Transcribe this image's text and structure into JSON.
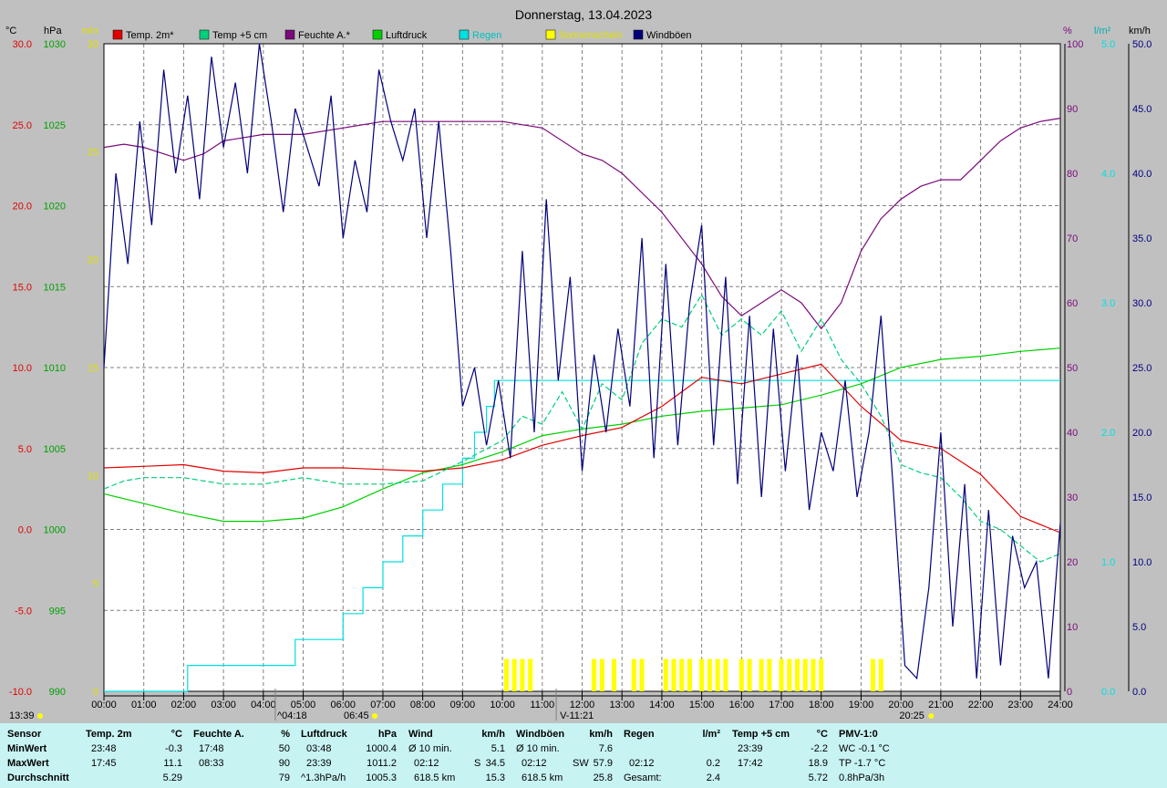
{
  "page": {
    "title": "Donnerstag, 13.04.2023"
  },
  "colors": {
    "temp2m": "#e00000",
    "temp5cm": "#00d07a",
    "humidity": "#7a0a7a",
    "pressure": "#00d000",
    "rain": "#00e0e0",
    "sun": "#ffff00",
    "gust": "#00007a"
  },
  "chart_data": {
    "type": "line",
    "title": "Donnerstag, 13.04.2023",
    "x_ticks": [
      "00:00",
      "01:00",
      "02:00",
      "03:00",
      "04:00",
      "05:00",
      "06:00",
      "07:00",
      "08:00",
      "09:00",
      "10:00",
      "11:00",
      "12:00",
      "13:00",
      "14:00",
      "15:00",
      "16:00",
      "17:00",
      "18:00",
      "19:00",
      "20:00",
      "21:00",
      "22:00",
      "23:00",
      "24:00"
    ],
    "xlim": [
      0,
      24
    ],
    "grid": true,
    "legend": [
      {
        "label": "Temp. 2m*",
        "color": "#e00000"
      },
      {
        "label": "Temp +5 cm",
        "color": "#00d07a"
      },
      {
        "label": "Feuchte A.*",
        "color": "#7a0a7a"
      },
      {
        "label": "Luftdruck",
        "color": "#00d000"
      },
      {
        "label": "Regen",
        "color": "#00e0e0"
      },
      {
        "label": "Sonnenschein",
        "color": "#ffff00"
      },
      {
        "label": "Windböen",
        "color": "#00007a"
      }
    ],
    "axes": {
      "temp": {
        "unit": "°C",
        "min": -10,
        "max": 30,
        "ticks": [
          "30.0",
          "25.0",
          "20.0",
          "15.0",
          "10.0",
          "5.0",
          "0.0",
          "-5.0",
          "-10.0"
        ],
        "color": "#e00000"
      },
      "pressure": {
        "unit": "hPa",
        "min": 990,
        "max": 1030,
        "ticks": [
          "1030",
          "1025",
          "1020",
          "1015",
          "1010",
          "1005",
          "1000",
          "995",
          "990"
        ],
        "color": "#00a000"
      },
      "sun": {
        "unit": "min",
        "min": 0,
        "max": 30,
        "ticks": [
          "30",
          "25",
          "20",
          "15",
          "10",
          "5",
          "0"
        ],
        "color": "#e0e000"
      },
      "humidity": {
        "unit": "%",
        "min": 0,
        "max": 100,
        "ticks": [
          "100",
          "90",
          "80",
          "70",
          "60",
          "50",
          "40",
          "30",
          "20",
          "10",
          "0"
        ],
        "color": "#7a0a7a"
      },
      "rain": {
        "unit": "l/m²",
        "min": 0,
        "max": 5,
        "ticks": [
          "5.0",
          "4.0",
          "3.0",
          "2.0",
          "1.0",
          "0.0"
        ],
        "color": "#00e0e0"
      },
      "wind": {
        "unit": "km/h",
        "min": 0,
        "max": 50,
        "ticks": [
          "50.0",
          "45.0",
          "40.0",
          "35.0",
          "30.0",
          "25.0",
          "20.0",
          "15.0",
          "10.0",
          "5.0",
          "0.0"
        ],
        "color": "#000080"
      }
    },
    "series": [
      {
        "name": "Temp. 2m*",
        "axis": "temp",
        "x": [
          0,
          1,
          2,
          3,
          4,
          5,
          6,
          7,
          8,
          9,
          10,
          11,
          12,
          13,
          14,
          15,
          16,
          17,
          18,
          19,
          20,
          21,
          22,
          23,
          24
        ],
        "y": [
          3.8,
          3.9,
          4.0,
          3.6,
          3.5,
          3.8,
          3.8,
          3.7,
          3.6,
          3.8,
          4.3,
          5.2,
          5.8,
          6.3,
          7.6,
          9.4,
          9.0,
          9.6,
          10.2,
          7.6,
          5.5,
          5.0,
          3.4,
          0.8,
          -0.2
        ]
      },
      {
        "name": "Temp +5 cm",
        "axis": "temp",
        "x": [
          0,
          0.5,
          1,
          2,
          3,
          4,
          5,
          6,
          7,
          8,
          9,
          10,
          10.5,
          11,
          11.5,
          12,
          12.5,
          13,
          13.5,
          14,
          14.5,
          15,
          15.5,
          16,
          16.5,
          17,
          17.5,
          18,
          18.5,
          19,
          19.5,
          20,
          20.5,
          21,
          21.5,
          22,
          22.5,
          23,
          23.5,
          24
        ],
        "y": [
          2.5,
          3.0,
          3.2,
          3.2,
          2.8,
          2.8,
          3.2,
          2.8,
          2.8,
          3.0,
          4.2,
          5.5,
          7.0,
          6.5,
          8.5,
          6.2,
          9.0,
          8.0,
          11.5,
          13.0,
          12.5,
          14.5,
          12.0,
          13.0,
          12.0,
          13.5,
          11.0,
          13.0,
          10.5,
          9.0,
          7.0,
          4.0,
          3.5,
          3.2,
          2.0,
          0.5,
          0.0,
          -1.0,
          -2.0,
          -1.5
        ]
      },
      {
        "name": "Feuchte A.*",
        "axis": "humidity",
        "x": [
          0,
          0.5,
          1,
          1.5,
          2,
          2.5,
          3,
          4,
          5,
          6,
          7,
          8,
          9,
          10,
          11,
          12,
          12.5,
          13,
          14,
          15,
          15.5,
          16,
          16.5,
          17,
          17.5,
          18,
          18.5,
          19,
          19.5,
          20,
          20.5,
          21,
          21.5,
          22,
          22.5,
          23,
          23.5,
          24
        ],
        "y": [
          84,
          84.5,
          84,
          83,
          82,
          83,
          85,
          86,
          86,
          87,
          88,
          88,
          88,
          88,
          87,
          83,
          82,
          80,
          74,
          66,
          61,
          58,
          60,
          62,
          60,
          56,
          60,
          68,
          73,
          76,
          78,
          79,
          79,
          82,
          85,
          87,
          88,
          88.5
        ]
      },
      {
        "name": "Luftdruck",
        "axis": "pressure",
        "x": [
          0,
          1,
          2,
          3,
          4,
          5,
          6,
          7,
          8,
          9,
          10,
          11,
          12,
          13,
          14,
          15,
          16,
          17,
          18,
          19,
          20,
          21,
          22,
          23,
          24
        ],
        "y": [
          1002.2,
          1001.6,
          1001.0,
          1000.5,
          1000.5,
          1000.7,
          1001.4,
          1002.5,
          1003.5,
          1004.0,
          1004.8,
          1005.8,
          1006.2,
          1006.5,
          1007.0,
          1007.3,
          1007.5,
          1007.7,
          1008.3,
          1009.0,
          1010.0,
          1010.5,
          1010.7,
          1011.0,
          1011.2
        ]
      },
      {
        "name": "Regen",
        "axis": "rain",
        "x": [
          0,
          2.1,
          2.1,
          4.8,
          4.8,
          6,
          6,
          6.5,
          6.5,
          7,
          7,
          7.5,
          7.5,
          8,
          8,
          8.5,
          8.5,
          9,
          9,
          9.3,
          9.3,
          9.6,
          9.6,
          9.8,
          9.8,
          10.2,
          10.2,
          24
        ],
        "y": [
          0,
          0,
          0.2,
          0.2,
          0.4,
          0.4,
          0.6,
          0.6,
          0.8,
          0.8,
          1.0,
          1.0,
          1.2,
          1.2,
          1.4,
          1.4,
          1.6,
          1.6,
          1.8,
          1.8,
          2.0,
          2.0,
          2.2,
          2.2,
          2.4,
          2.4,
          2.4,
          2.4
        ]
      },
      {
        "name": "Sonnenschein",
        "axis": "sun",
        "type": "bars",
        "x": [
          10.1,
          10.3,
          10.5,
          10.7,
          12.3,
          12.5,
          12.8,
          13.3,
          13.5,
          14.1,
          14.3,
          14.5,
          14.7,
          15.0,
          15.2,
          15.4,
          15.6,
          16.0,
          16.2,
          16.5,
          16.7,
          17.0,
          17.2,
          17.4,
          17.6,
          17.8,
          18.0,
          19.3,
          19.5
        ],
        "y": [
          1.5,
          1.5,
          1.5,
          1.5,
          1.5,
          1.5,
          1.5,
          1.5,
          1.5,
          1.5,
          1.5,
          1.5,
          1.5,
          1.5,
          1.5,
          1.5,
          1.5,
          1.5,
          1.5,
          1.5,
          1.5,
          1.5,
          1.5,
          1.5,
          1.5,
          1.5,
          1.5,
          1.5,
          1.5
        ]
      },
      {
        "name": "Windböen",
        "axis": "wind",
        "x": [
          0,
          0.3,
          0.6,
          0.9,
          1.2,
          1.5,
          1.8,
          2.1,
          2.4,
          2.7,
          3.0,
          3.3,
          3.6,
          3.9,
          4.2,
          4.5,
          4.8,
          5.1,
          5.4,
          5.7,
          6.0,
          6.3,
          6.6,
          6.9,
          7.2,
          7.5,
          7.8,
          8.1,
          8.4,
          8.7,
          9.0,
          9.3,
          9.6,
          9.9,
          10.2,
          10.5,
          10.8,
          11.1,
          11.4,
          11.7,
          12.0,
          12.3,
          12.6,
          12.9,
          13.2,
          13.5,
          13.8,
          14.1,
          14.4,
          14.7,
          15.0,
          15.3,
          15.6,
          15.9,
          16.2,
          16.5,
          16.8,
          17.1,
          17.4,
          17.7,
          18.0,
          18.3,
          18.6,
          18.9,
          19.2,
          19.5,
          19.8,
          20.1,
          20.4,
          20.7,
          21.0,
          21.3,
          21.6,
          21.9,
          22.2,
          22.5,
          22.8,
          23.1,
          23.4,
          23.7,
          24.0
        ],
        "y": [
          25,
          40,
          33,
          44,
          36,
          48,
          40,
          46,
          38,
          49,
          42,
          47,
          40,
          50,
          44,
          37,
          45,
          42,
          39,
          46,
          35,
          41,
          37,
          48,
          44,
          41,
          45,
          35,
          44,
          34,
          22,
          25,
          19,
          24,
          18,
          34,
          20,
          38,
          24,
          32,
          17,
          26,
          20,
          28,
          22,
          35,
          18,
          33,
          19,
          30,
          36,
          19,
          32,
          16,
          29,
          15,
          28,
          17,
          26,
          14,
          20,
          17,
          24,
          15,
          20,
          29,
          16,
          2,
          1,
          8,
          20,
          5,
          16,
          1,
          14,
          2,
          12,
          8,
          10,
          1,
          13
        ]
      }
    ],
    "sunrise": "06:45",
    "sunset": "20:25",
    "time_markers": [
      "04:18",
      "11:21"
    ],
    "corner_time": "13:39"
  },
  "stats": {
    "row_labels": {
      "sensor": "Sensor",
      "min": "MinWert",
      "max": "MaxWert",
      "avg": "Durchschnitt"
    },
    "temp2m": {
      "header": "Temp. 2m",
      "unit": "°C",
      "min_time": "23:48",
      "min_val": "-0.3",
      "max_time": "17:45",
      "max_val": "11.1",
      "avg": "5.29"
    },
    "humidity": {
      "header": "Feuchte A.",
      "unit": "%",
      "min_time": "17:48",
      "min_val": "50",
      "max_time": "08:33",
      "max_val": "90",
      "avg": "79"
    },
    "pressure": {
      "header": "Luftdruck",
      "unit": "hPa",
      "min_time": "03:48",
      "min_val": "1000.4",
      "max_time": "23:39",
      "max_val": "1011.2",
      "avg_label": "^1.3hPa/h",
      "avg": "1005.3"
    },
    "wind": {
      "header": "Wind",
      "unit": "km/h",
      "min_label": "Ø 10 min.",
      "min_val": "5.1",
      "max_time": "02:12",
      "max_dir": "S",
      "max_val": "34.5",
      "dist": "618.5 km",
      "avg": "15.3"
    },
    "gust": {
      "header": "Windböen",
      "unit": "km/h",
      "min_label": "Ø 10 min.",
      "min_val": "7.6",
      "max_time": "02:12",
      "max_dir": "SW",
      "max_val": "57.9",
      "dist": "618.5 km",
      "avg": "25.8"
    },
    "rain": {
      "header": "Regen",
      "unit": "l/m²",
      "max_time": "02:12",
      "max_val": "0.2",
      "total_label": "Gesamt:",
      "total": "2.4"
    },
    "temp5cm": {
      "header": "Temp +5 cm",
      "unit": "°C",
      "min_time": "23:39",
      "min_val": "-2.2",
      "max_time": "17:42",
      "max_val": "18.9",
      "avg": "5.72"
    },
    "pmv": {
      "header": "PMV-1:0",
      "wc": "WC -0.1 °C",
      "tp": "TP -1.7 °C",
      "trend": "0.8hPa/3h"
    }
  }
}
